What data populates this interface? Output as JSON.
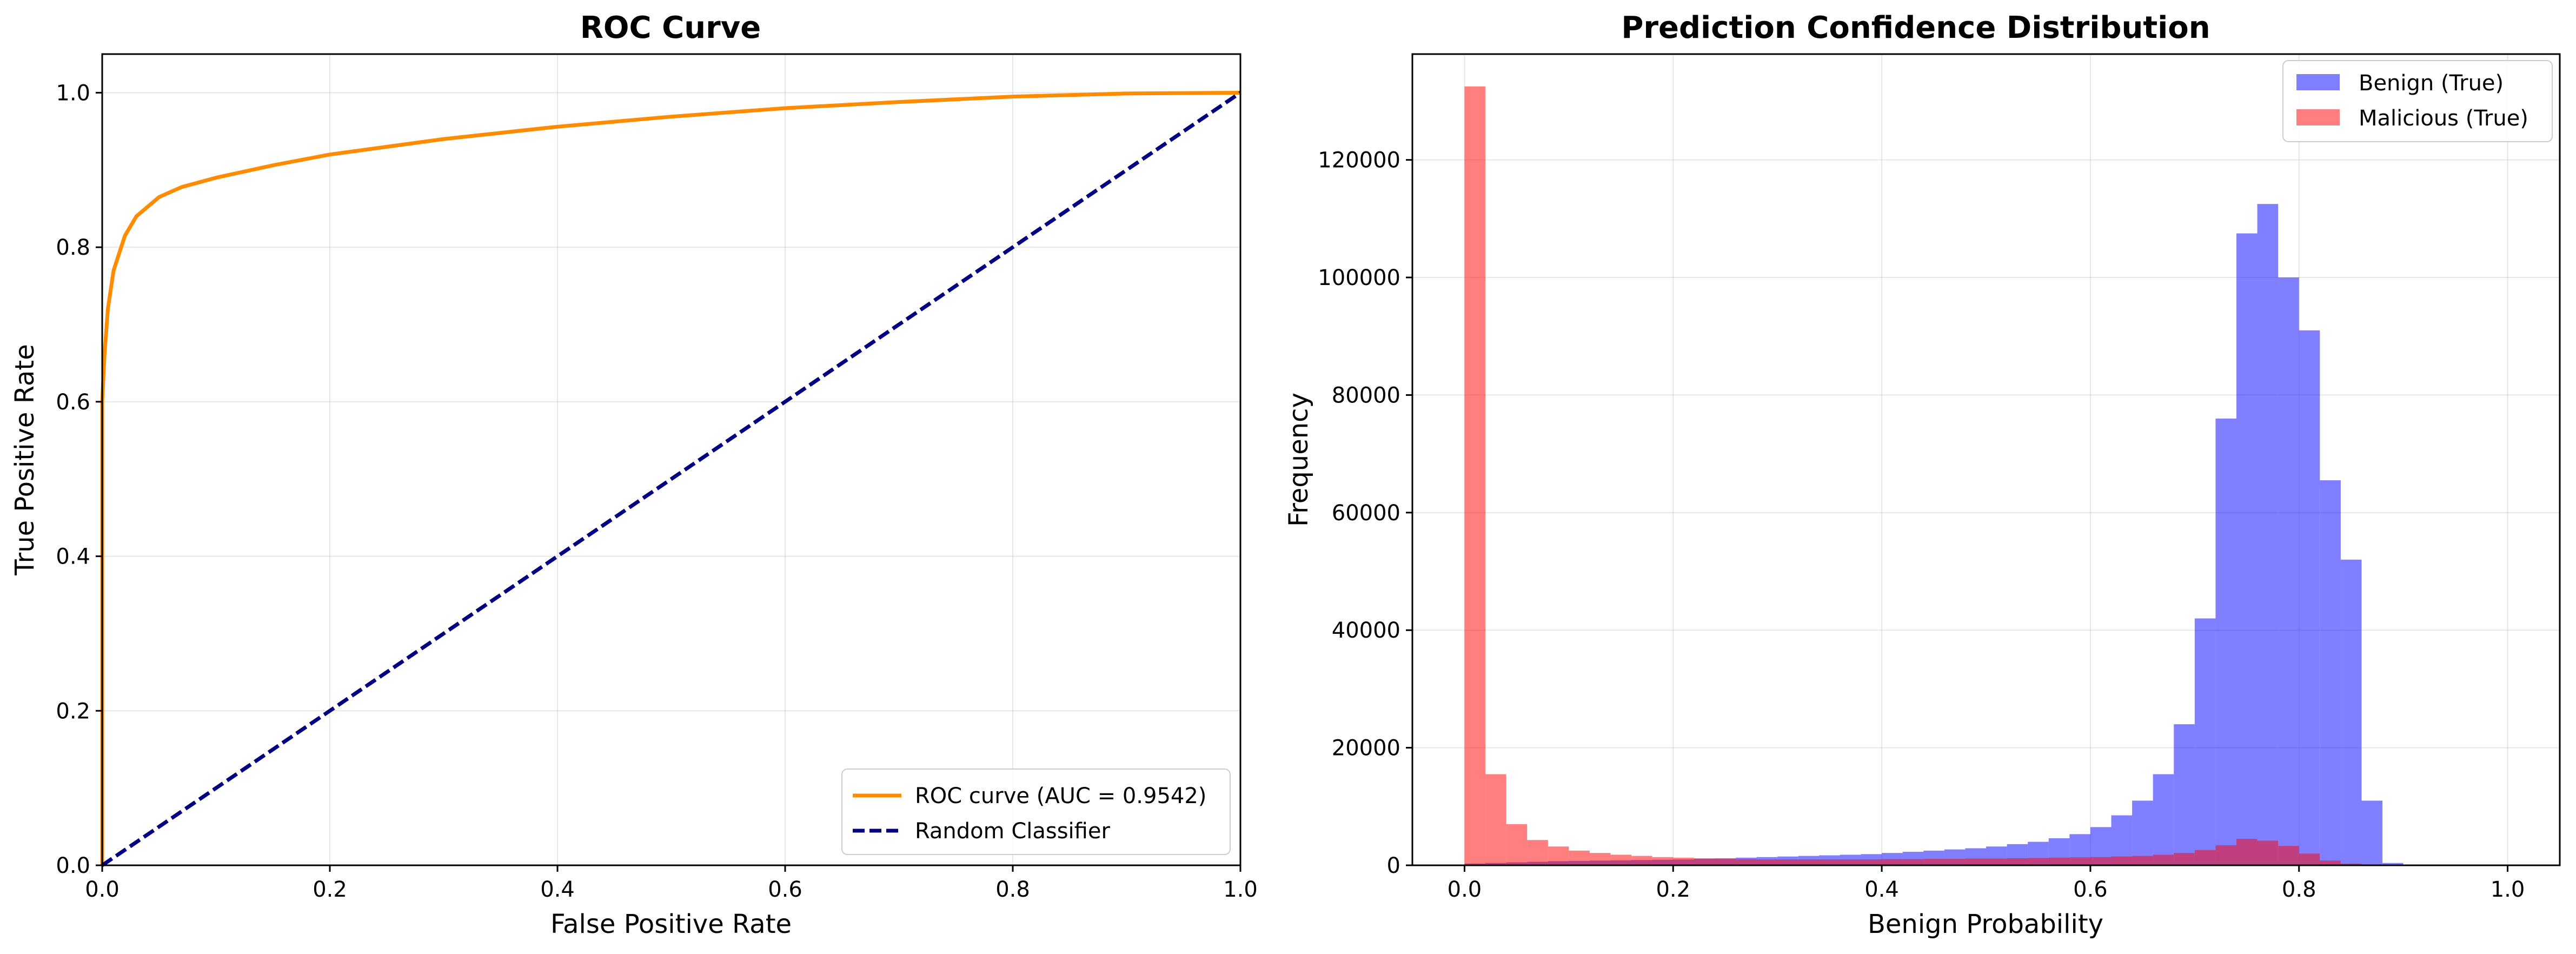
{
  "chart_data": [
    {
      "type": "line",
      "title": "ROC Curve",
      "xlabel": "False Positive Rate",
      "ylabel": "True Positive Rate",
      "xlim": [
        0.0,
        1.0
      ],
      "ylim": [
        0.0,
        1.05
      ],
      "xticks": [
        "0.0",
        "0.2",
        "0.4",
        "0.6",
        "0.8",
        "1.0"
      ],
      "yticks": [
        "0.0",
        "0.2",
        "0.4",
        "0.6",
        "0.8",
        "1.0"
      ],
      "grid": true,
      "legend_position": "lower-right",
      "series": [
        {
          "name": "ROC curve (AUC = 0.9542)",
          "color": "#ff8c00",
          "style": "solid",
          "x": [
            0.0,
            0.0,
            0.002,
            0.005,
            0.01,
            0.02,
            0.03,
            0.05,
            0.07,
            0.1,
            0.15,
            0.2,
            0.3,
            0.4,
            0.5,
            0.6,
            0.7,
            0.8,
            0.9,
            1.0
          ],
          "y": [
            0.0,
            0.6,
            0.66,
            0.72,
            0.77,
            0.815,
            0.84,
            0.865,
            0.878,
            0.89,
            0.906,
            0.92,
            0.94,
            0.956,
            0.969,
            0.98,
            0.988,
            0.995,
            0.999,
            1.0
          ]
        },
        {
          "name": "Random Classifier",
          "color": "#000080",
          "style": "dashed",
          "x": [
            0.0,
            1.0
          ],
          "y": [
            0.0,
            1.0
          ]
        }
      ]
    },
    {
      "type": "bar",
      "title": "Prediction Confidence Distribution",
      "xlabel": "Benign Probability",
      "ylabel": "Frequency",
      "xlim": [
        -0.05,
        1.05
      ],
      "ylim": [
        0,
        138000
      ],
      "xticks": [
        "0.0",
        "0.2",
        "0.4",
        "0.6",
        "0.8",
        "1.0"
      ],
      "yticks": [
        "0",
        "20000",
        "40000",
        "60000",
        "80000",
        "100000",
        "120000"
      ],
      "grid": true,
      "legend_position": "top-right",
      "bin_width": 0.02,
      "bin_starts": [
        0.0,
        0.02,
        0.04,
        0.06,
        0.08,
        0.1,
        0.12,
        0.14,
        0.16,
        0.18,
        0.2,
        0.22,
        0.24,
        0.26,
        0.28,
        0.3,
        0.32,
        0.34,
        0.36,
        0.38,
        0.4,
        0.42,
        0.44,
        0.46,
        0.48,
        0.5,
        0.52,
        0.54,
        0.56,
        0.58,
        0.6,
        0.62,
        0.64,
        0.66,
        0.68,
        0.7,
        0.72,
        0.74,
        0.76,
        0.78,
        0.8,
        0.82,
        0.84,
        0.86,
        0.88
      ],
      "series": [
        {
          "name": "Benign (True)",
          "color": "#0000ff",
          "opacity": 0.5,
          "values": [
            300,
            400,
            500,
            600,
            700,
            750,
            800,
            850,
            900,
            950,
            1000,
            1100,
            1200,
            1300,
            1400,
            1500,
            1600,
            1700,
            1800,
            1900,
            2100,
            2300,
            2500,
            2700,
            2900,
            3200,
            3600,
            4000,
            4600,
            5300,
            6500,
            8500,
            11000,
            15500,
            24000,
            42000,
            76000,
            107500,
            112500,
            100000,
            91000,
            65500,
            52000,
            11000,
            400
          ]
        },
        {
          "name": "Malicious (True)",
          "color": "#ff0000",
          "opacity": 0.5,
          "values": [
            132500,
            15500,
            7000,
            4300,
            3200,
            2500,
            2100,
            1800,
            1600,
            1400,
            1300,
            1200,
            1100,
            1050,
            1000,
            1000,
            1000,
            1000,
            1000,
            1000,
            1050,
            1050,
            1100,
            1100,
            1150,
            1150,
            1200,
            1250,
            1300,
            1350,
            1400,
            1500,
            1600,
            1800,
            2100,
            2600,
            3400,
            4500,
            4200,
            3300,
            2000,
            800,
            300,
            100,
            0
          ]
        }
      ]
    }
  ]
}
